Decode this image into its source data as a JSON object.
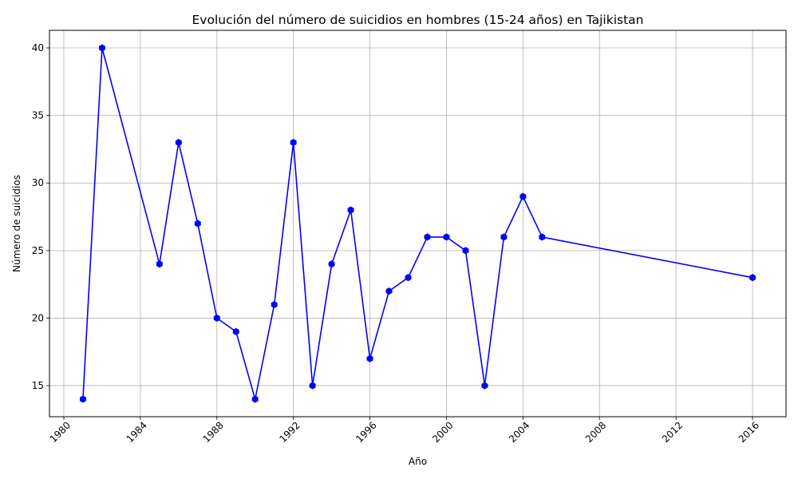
{
  "chart_data": {
    "type": "line",
    "title": "Evolución del número de suicidios en hombres (15-24 años) en Tajikistan",
    "xlabel": "Año",
    "ylabel": "Número de suicidios",
    "xlim": [
      1979.25,
      2017.75
    ],
    "ylim": [
      12.7,
      41.3
    ],
    "xticks": [
      1980,
      1984,
      1988,
      1992,
      1996,
      2000,
      2004,
      2008,
      2012,
      2016
    ],
    "yticks": [
      15,
      20,
      25,
      30,
      35,
      40
    ],
    "grid": true,
    "legend": "none",
    "series": [
      {
        "color": "#0000ff",
        "marker": "hexagon",
        "x": [
          1981,
          1982,
          1985,
          1986,
          1987,
          1988,
          1989,
          1990,
          1991,
          1992,
          1993,
          1994,
          1995,
          1996,
          1997,
          1998,
          1999,
          2000,
          2001,
          2002,
          2003,
          2004,
          2005,
          2016
        ],
        "values": [
          14,
          40,
          24,
          33,
          27,
          20,
          19,
          14,
          21,
          33,
          15,
          24,
          28,
          17,
          22,
          23,
          26,
          26,
          25,
          15,
          26,
          29,
          26,
          23
        ]
      }
    ]
  }
}
